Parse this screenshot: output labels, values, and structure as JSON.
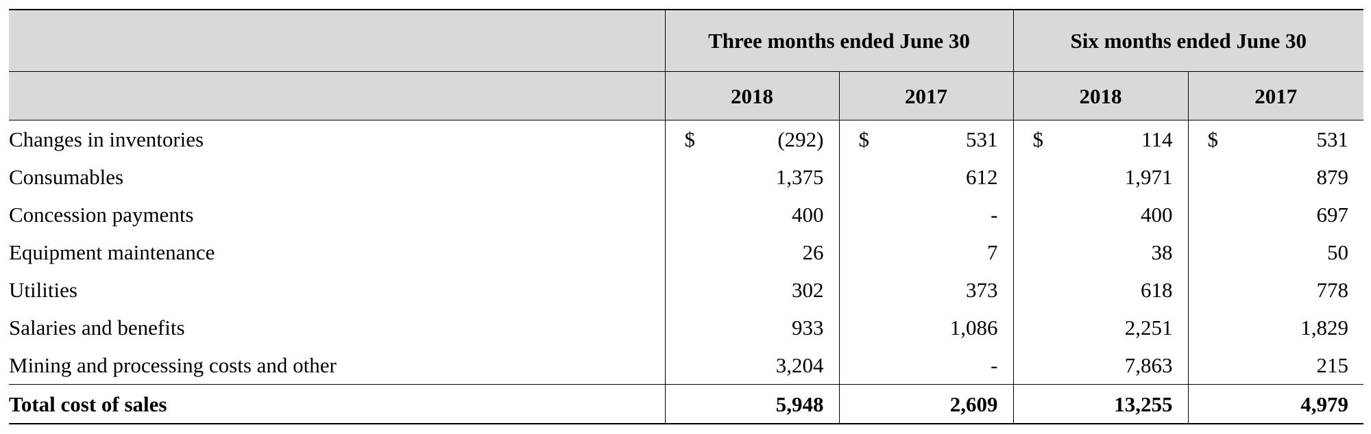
{
  "table": {
    "header": {
      "three_months": "Three months ended June 30",
      "six_months": "Six months ended June 30",
      "years": [
        "2018",
        "2017",
        "2018",
        "2017"
      ]
    },
    "rows": [
      {
        "label": "Changes in inventories",
        "currency": "$",
        "values": [
          "(292)",
          "531",
          "114",
          "531"
        ]
      },
      {
        "label": "Consumables",
        "values": [
          "1,375",
          "612",
          "1,971",
          "879"
        ]
      },
      {
        "label": "Concession payments",
        "values": [
          "400",
          "-",
          "400",
          "697"
        ]
      },
      {
        "label": "Equipment maintenance",
        "values": [
          "26",
          "7",
          "38",
          "50"
        ]
      },
      {
        "label": "Utilities",
        "values": [
          "302",
          "373",
          "618",
          "778"
        ]
      },
      {
        "label": "Salaries and benefits",
        "values": [
          "933",
          "1,086",
          "2,251",
          "1,829"
        ]
      },
      {
        "label": "Mining and processing costs and other",
        "values": [
          "3,204",
          "-",
          "7,863",
          "215"
        ]
      }
    ],
    "total": {
      "label": "Total cost of sales",
      "values": [
        "5,948",
        "2,609",
        "13,255",
        "4,979"
      ]
    }
  }
}
